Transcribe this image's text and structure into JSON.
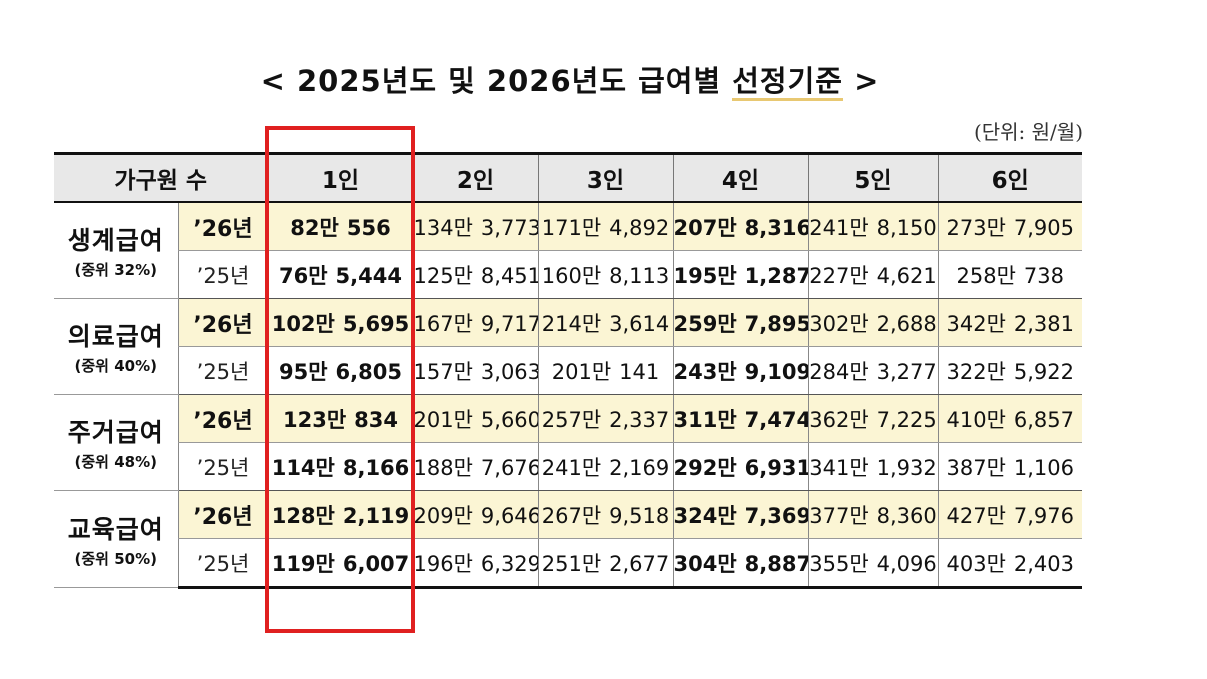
{
  "title": {
    "prefix": "< 2025년도 및 2026년도 급여별 ",
    "highlight": "선정기준",
    "suffix": " >"
  },
  "unit_note": "(단위: 원/월)",
  "colors": {
    "row_2026_bg": "#fbf5d4",
    "header_bg": "#e8e8e8",
    "highlight_box": "#e02020"
  },
  "table": {
    "header_first": "가구원 수",
    "columns": [
      "1인",
      "2인",
      "3인",
      "4인",
      "5인",
      "6인"
    ],
    "groups": [
      {
        "name": "생계급여",
        "median": "(중위 32%)",
        "rows": [
          {
            "year": "’26년",
            "values": [
              [
                "82만",
                "556"
              ],
              [
                "134만",
                "3,773"
              ],
              [
                "171만",
                "4,892"
              ],
              [
                "207만",
                "8,316"
              ],
              [
                "241만",
                "8,150"
              ],
              [
                "273만",
                "7,905"
              ]
            ]
          },
          {
            "year": "’25년",
            "values": [
              [
                "76만",
                "5,444"
              ],
              [
                "125만",
                "8,451"
              ],
              [
                "160만",
                "8,113"
              ],
              [
                "195만",
                "1,287"
              ],
              [
                "227만",
                "4,621"
              ],
              [
                "258만",
                "738"
              ]
            ]
          }
        ]
      },
      {
        "name": "의료급여",
        "median": "(중위 40%)",
        "rows": [
          {
            "year": "’26년",
            "values": [
              [
                "102만",
                "5,695"
              ],
              [
                "167만",
                "9,717"
              ],
              [
                "214만",
                "3,614"
              ],
              [
                "259만",
                "7,895"
              ],
              [
                "302만",
                "2,688"
              ],
              [
                "342만",
                "2,381"
              ]
            ]
          },
          {
            "year": "’25년",
            "values": [
              [
                "95만",
                "6,805"
              ],
              [
                "157만",
                "3,063"
              ],
              [
                "201만",
                "141"
              ],
              [
                "243만",
                "9,109"
              ],
              [
                "284만",
                "3,277"
              ],
              [
                "322만",
                "5,922"
              ]
            ]
          }
        ]
      },
      {
        "name": "주거급여",
        "median": "(중위 48%)",
        "rows": [
          {
            "year": "’26년",
            "values": [
              [
                "123만",
                "834"
              ],
              [
                "201만",
                "5,660"
              ],
              [
                "257만",
                "2,337"
              ],
              [
                "311만",
                "7,474"
              ],
              [
                "362만",
                "7,225"
              ],
              [
                "410만",
                "6,857"
              ]
            ]
          },
          {
            "year": "’25년",
            "values": [
              [
                "114만",
                "8,166"
              ],
              [
                "188만",
                "7,676"
              ],
              [
                "241만",
                "2,169"
              ],
              [
                "292만",
                "6,931"
              ],
              [
                "341만",
                "1,932"
              ],
              [
                "387만",
                "1,106"
              ]
            ]
          }
        ]
      },
      {
        "name": "교육급여",
        "median": "(중위 50%)",
        "rows": [
          {
            "year": "’26년",
            "values": [
              [
                "128만",
                "2,119"
              ],
              [
                "209만",
                "9,646"
              ],
              [
                "267만",
                "9,518"
              ],
              [
                "324만",
                "7,369"
              ],
              [
                "377만",
                "8,360"
              ],
              [
                "427만",
                "7,976"
              ]
            ]
          },
          {
            "year": "’25년",
            "values": [
              [
                "119만",
                "6,007"
              ],
              [
                "196만",
                "6,329"
              ],
              [
                "251만",
                "2,677"
              ],
              [
                "304만",
                "8,887"
              ],
              [
                "355만",
                "4,096"
              ],
              [
                "403만",
                "2,403"
              ]
            ]
          }
        ]
      }
    ]
  }
}
